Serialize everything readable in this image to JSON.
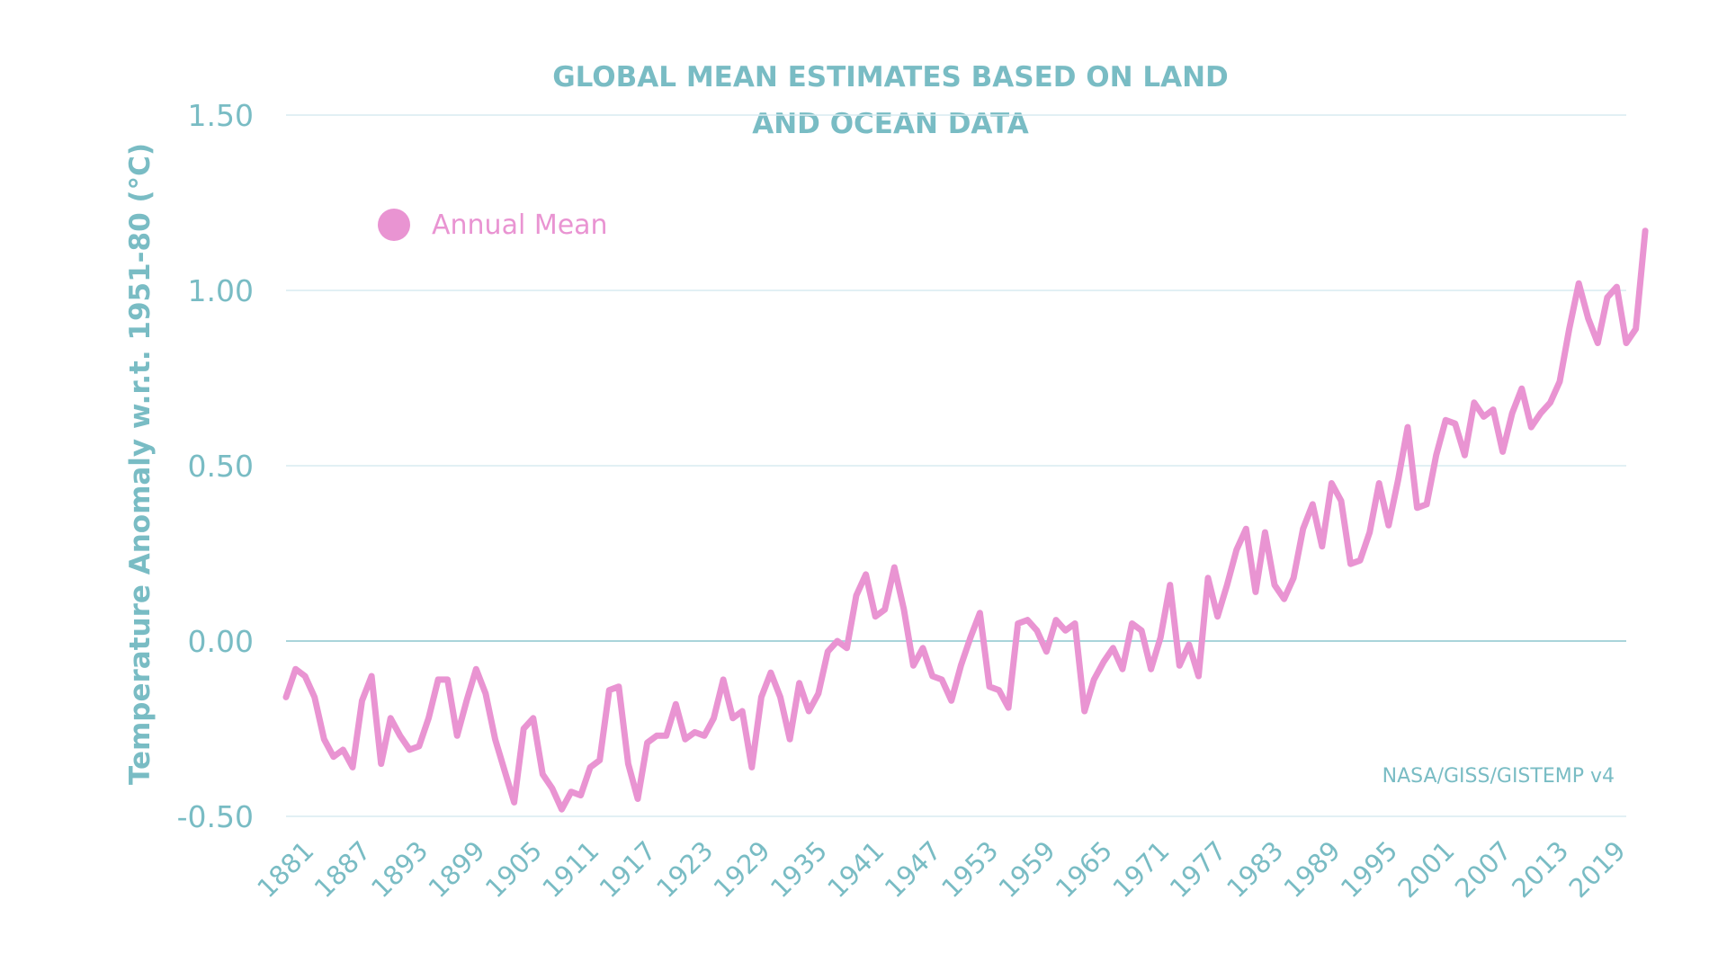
{
  "chart_data": {
    "type": "line",
    "title_lines": [
      "GLOBAL MEAN ESTIMATES BASED ON LAND",
      "AND OCEAN DATA"
    ],
    "ylabel": "Temperature Anomaly w.r.t. 1951-80 (°C)",
    "xlabel": "",
    "ylim": [
      -0.5,
      1.5
    ],
    "yticks": [
      -0.5,
      0.0,
      0.5,
      1.0,
      1.5
    ],
    "ytick_labels": [
      "-0.50",
      "0.00",
      "0.50",
      "1.00",
      "1.50"
    ],
    "xlim": [
      1880,
      2021
    ],
    "xticks": [
      1881,
      1887,
      1893,
      1899,
      1905,
      1911,
      1917,
      1923,
      1929,
      1935,
      1941,
      1947,
      1953,
      1959,
      1965,
      1971,
      1977,
      1983,
      1989,
      1995,
      2001,
      2007,
      2013,
      2019
    ],
    "xtick_labels": [
      "1881",
      "1887",
      "1893",
      "1899",
      "1905",
      "1911",
      "1917",
      "1923",
      "1929",
      "1935",
      "1941",
      "1947",
      "1953",
      "1959",
      "1965",
      "1971",
      "1977",
      "1983",
      "1989",
      "1995",
      "2001",
      "2007",
      "2013",
      "2019"
    ],
    "grid": true,
    "legend_position": "top-left",
    "series": [
      {
        "name": "Annual Mean",
        "color": "#e994d2",
        "x_start": 1880,
        "values": [
          -0.16,
          -0.08,
          -0.1,
          -0.16,
          -0.28,
          -0.33,
          -0.31,
          -0.36,
          -0.17,
          -0.1,
          -0.35,
          -0.22,
          -0.27,
          -0.31,
          -0.3,
          -0.22,
          -0.11,
          -0.11,
          -0.27,
          -0.17,
          -0.08,
          -0.15,
          -0.28,
          -0.37,
          -0.46,
          -0.25,
          -0.22,
          -0.38,
          -0.42,
          -0.48,
          -0.43,
          -0.44,
          -0.36,
          -0.34,
          -0.14,
          -0.13,
          -0.35,
          -0.45,
          -0.29,
          -0.27,
          -0.27,
          -0.18,
          -0.28,
          -0.26,
          -0.27,
          -0.22,
          -0.11,
          -0.22,
          -0.2,
          -0.36,
          -0.16,
          -0.09,
          -0.16,
          -0.28,
          -0.12,
          -0.2,
          -0.15,
          -0.03,
          0.0,
          -0.02,
          0.13,
          0.19,
          0.07,
          0.09,
          0.21,
          0.09,
          -0.07,
          -0.02,
          -0.1,
          -0.11,
          -0.17,
          -0.07,
          0.01,
          0.08,
          -0.13,
          -0.14,
          -0.19,
          0.05,
          0.06,
          0.03,
          -0.03,
          0.06,
          0.03,
          0.05,
          -0.2,
          -0.11,
          -0.06,
          -0.02,
          -0.08,
          0.05,
          0.03,
          -0.08,
          0.01,
          0.16,
          -0.07,
          -0.01,
          -0.1,
          0.18,
          0.07,
          0.16,
          0.26,
          0.32,
          0.14,
          0.31,
          0.16,
          0.12,
          0.18,
          0.32,
          0.39,
          0.27,
          0.45,
          0.4,
          0.22,
          0.23,
          0.31,
          0.45,
          0.33,
          0.46,
          0.61,
          0.38,
          0.39,
          0.53,
          0.63,
          0.62,
          0.53,
          0.68,
          0.64,
          0.66,
          0.54,
          0.65,
          0.72,
          0.61,
          0.65,
          0.68,
          0.74,
          0.89,
          1.02,
          0.92,
          0.85,
          0.98,
          1.01,
          0.85,
          0.89,
          1.17
        ]
      }
    ],
    "legend": [
      {
        "label": "Annual Mean",
        "color": "#e994d2"
      }
    ],
    "source": "NASA/GISS/GISTEMP v4"
  },
  "colors": {
    "accent_teal": "#79bcc4",
    "grid": "#d9ecf0",
    "zero_line": "#a9d4da",
    "line": "#e994d2"
  }
}
